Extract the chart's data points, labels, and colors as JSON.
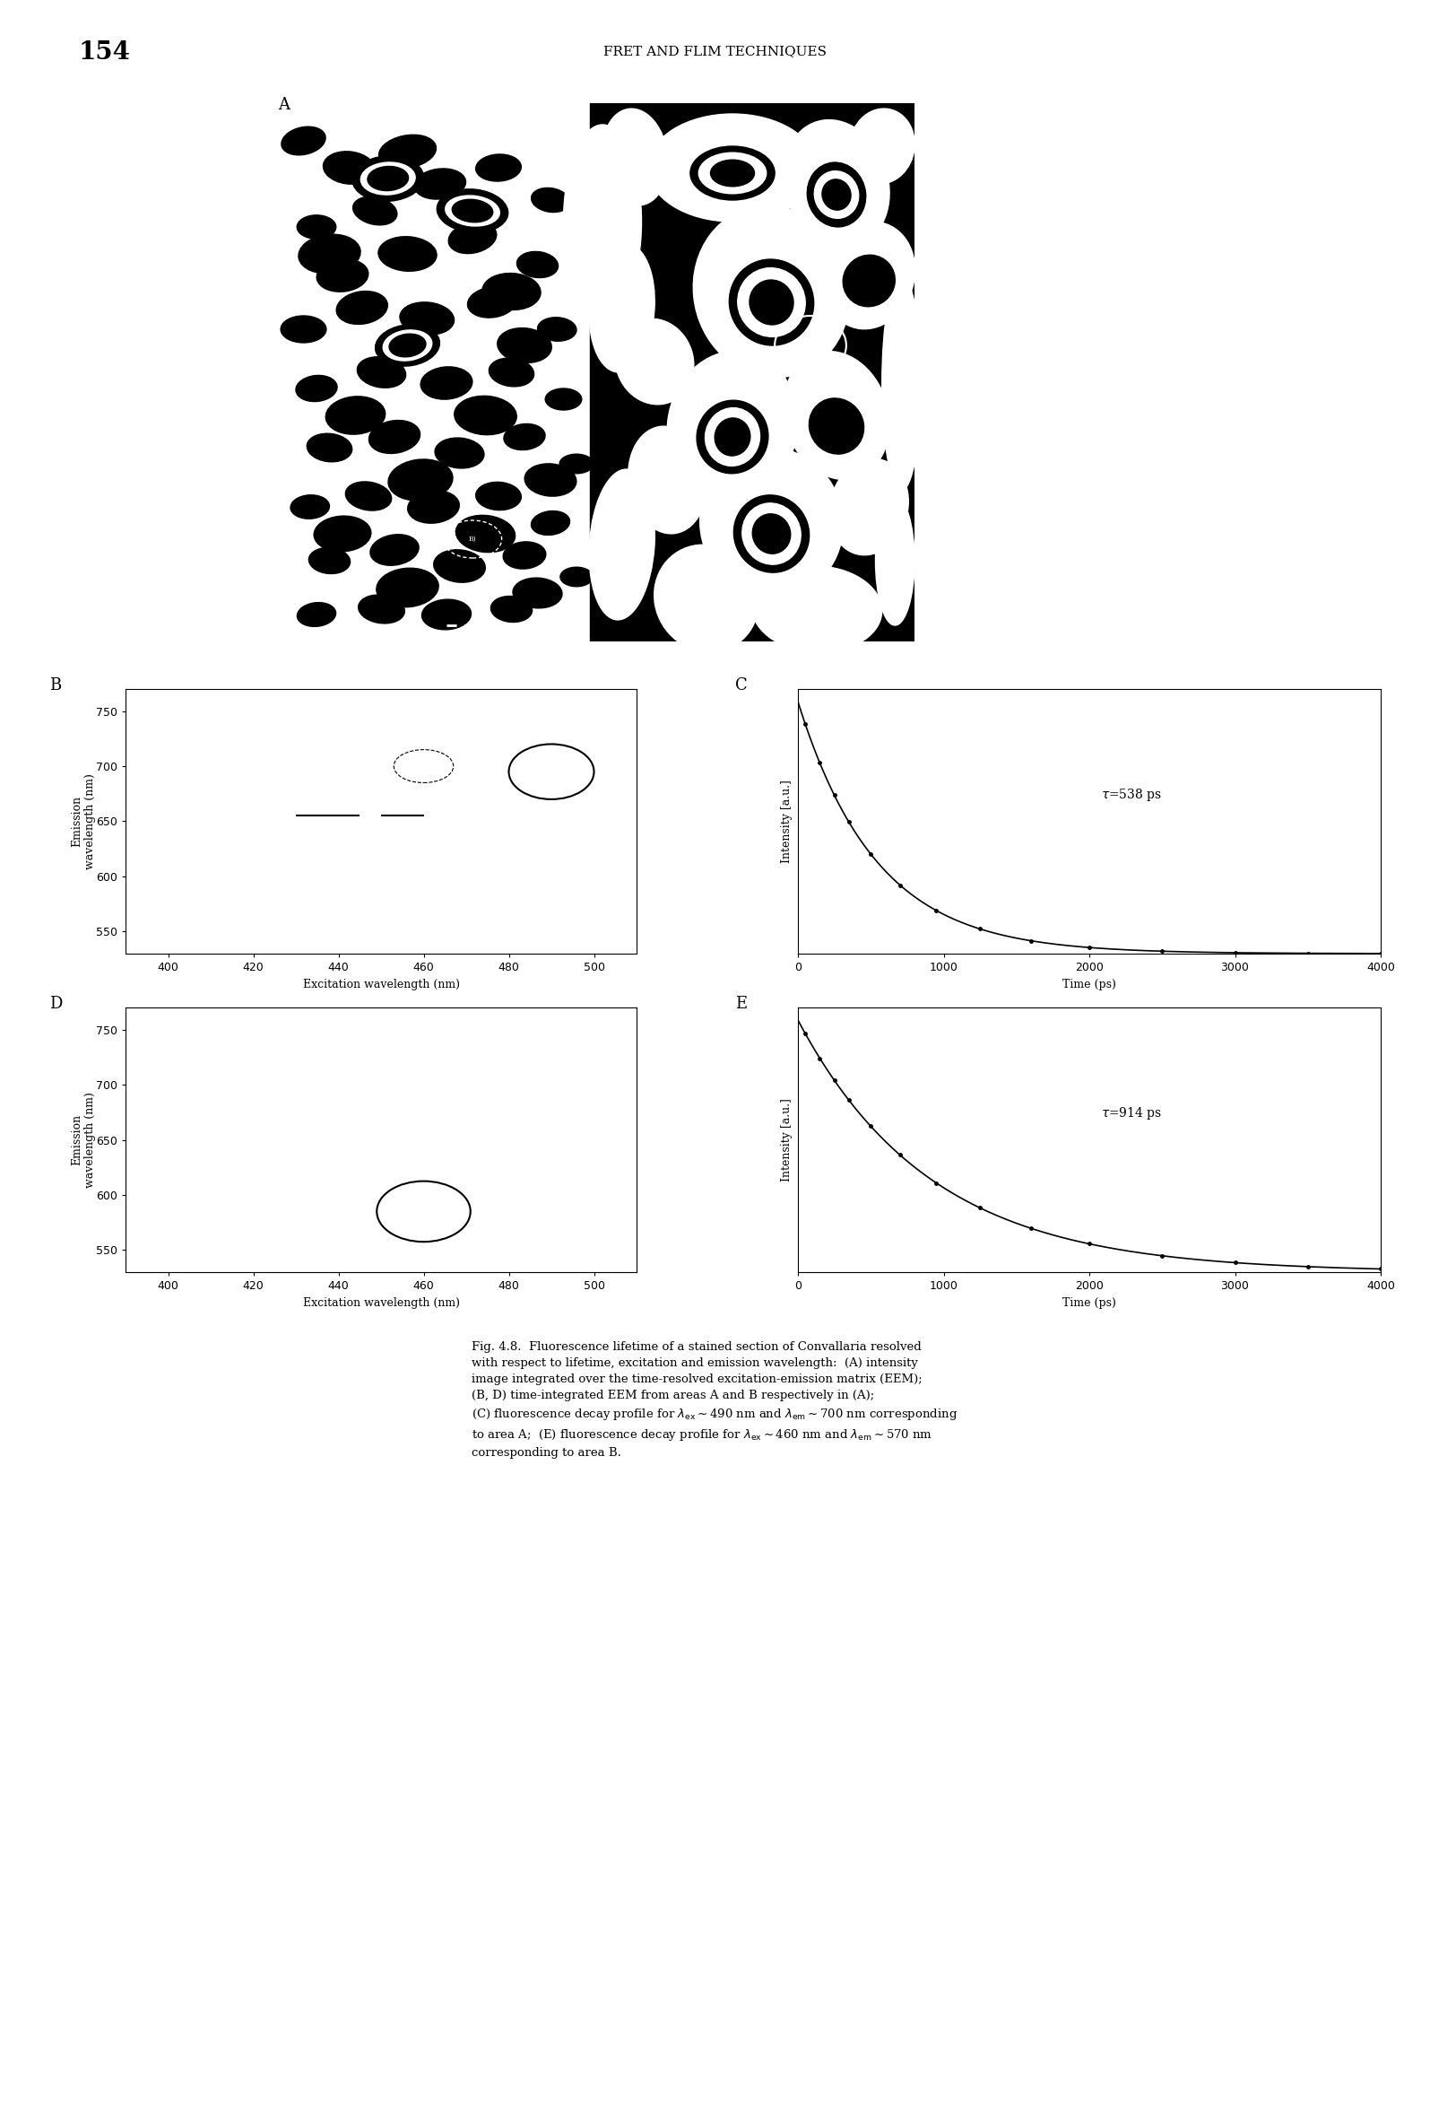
{
  "page_number": "154",
  "header_text": "FRET AND FLIM TECHNIQUES",
  "panel_A_label": "A",
  "panel_B_label": "B",
  "panel_C_label": "C",
  "panel_D_label": "D",
  "panel_E_label": "E",
  "eem_xlim": [
    390,
    510
  ],
  "eem_xticks": [
    400,
    420,
    440,
    460,
    480,
    500
  ],
  "eem_ylim": [
    530,
    770
  ],
  "eem_yticks": [
    550,
    600,
    650,
    700,
    750
  ],
  "eem_xlabel": "Excitation wavelength (nm)",
  "eem_ylabel_line1": "Emission",
  "eem_ylabel_line2": "wavelength (nm)",
  "decay_xlim": [
    0,
    4000
  ],
  "decay_xticks": [
    0,
    1000,
    2000,
    3000,
    4000
  ],
  "decay_xlabel": "Time (ps)",
  "decay_ylabel": "Intensity [a.u.]",
  "tau_C": 538,
  "tau_E": 914,
  "bg_color": "#ffffff"
}
